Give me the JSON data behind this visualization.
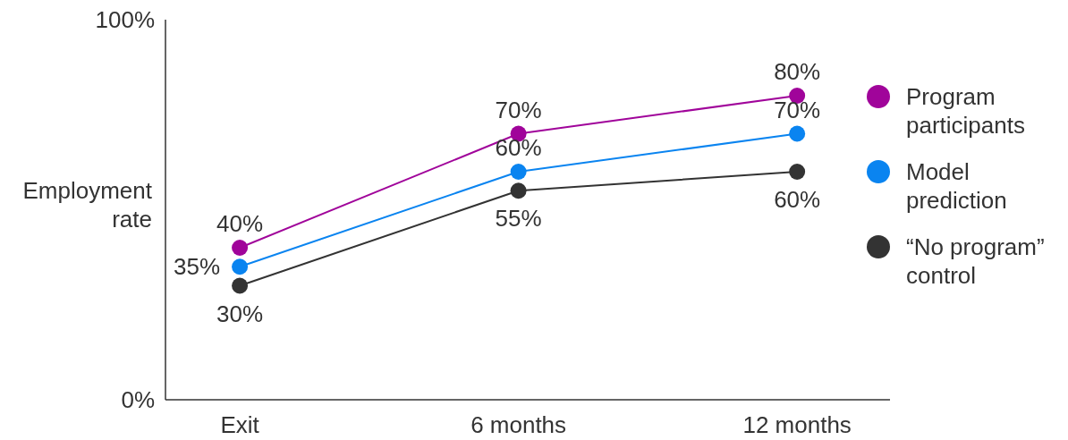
{
  "chart_data": {
    "type": "line",
    "ylabel": "Employment rate",
    "x": [
      0,
      6,
      12
    ],
    "xlim": [
      -1.6,
      14
    ],
    "xticks": [
      {
        "value": 0,
        "label": "Exit"
      },
      {
        "value": 6,
        "label": "6 months"
      },
      {
        "value": 12,
        "label": "12 months"
      }
    ],
    "ylim": [
      0,
      100
    ],
    "yticks": [
      {
        "value": 0,
        "label": "0%"
      },
      {
        "value": 100,
        "label": "100%"
      }
    ],
    "series": [
      {
        "name": "Program participants",
        "color": "#a0049a",
        "values": [
          40,
          70,
          80
        ],
        "value_labels": [
          "40%",
          "70%",
          "80%"
        ]
      },
      {
        "name": "Model prediction",
        "color": "#0a84f0",
        "values": [
          35,
          60,
          70
        ],
        "value_labels": [
          "35%",
          "60%",
          "70%"
        ]
      },
      {
        "name": "“No program” control",
        "color": "#333333",
        "values": [
          30,
          55,
          60
        ],
        "value_labels": [
          "30%",
          "55%",
          "60%"
        ]
      }
    ],
    "marker": "circle",
    "line_style": "solid",
    "grid": false,
    "legend": "right"
  }
}
